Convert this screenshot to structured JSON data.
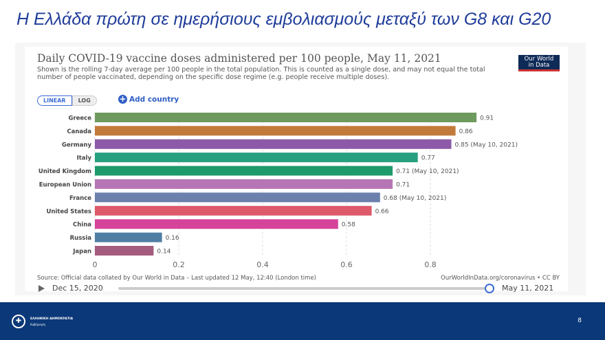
{
  "slide": {
    "title": "Η Ελλάδα πρώτη σε ημερήσιους εμβολιασμούς μεταξύ των G8 και G20",
    "page": "8"
  },
  "footer": {
    "org": "ΕΛΛΗΝΙΚΗ ΔΗΜΟΚΡΑΤΙΑ",
    "dept": "Κυβέρνηση"
  },
  "controls": {
    "linear": "LINEAR",
    "log": "LOG",
    "add_country": "Add country",
    "start_date": "Dec 15, 2020",
    "end_date": "May 11, 2021"
  },
  "logo": {
    "line1": "Our World",
    "line2": "in Data"
  },
  "chart_data": {
    "type": "bar",
    "orientation": "horizontal",
    "title": "Daily COVID-19 vaccine doses administered per 100 people, May 11, 2021",
    "subtitle": "Shown is the rolling 7-day average per 100 people in the total population. This is counted as a single dose, and may not equal the total number of people vaccinated, depending on the specific dose regime (e.g. people receive multiple doses).",
    "categories": [
      "Greece",
      "Canada",
      "Germany",
      "Italy",
      "United Kingdom",
      "European Union",
      "France",
      "United States",
      "China",
      "Russia",
      "Japan"
    ],
    "values": [
      0.91,
      0.86,
      0.85,
      0.77,
      0.71,
      0.71,
      0.68,
      0.66,
      0.58,
      0.16,
      0.14
    ],
    "labels": [
      "0.91",
      "0.86",
      "0.85 (May 10, 2021)",
      "0.77",
      "0.71 (May 10, 2021)",
      "0.71",
      "0.68 (May 10, 2021)",
      "0.66",
      "0.58",
      "0.16",
      "0.14"
    ],
    "colors": [
      "#6f9a5e",
      "#c27a3a",
      "#8c5aa8",
      "#26a07e",
      "#1e9a6b",
      "#b676b5",
      "#6b80ad",
      "#dc5a6a",
      "#d6449a",
      "#4e7ea4",
      "#a55b7d"
    ],
    "xticks": [
      0,
      0.2,
      0.4,
      0.6,
      0.8
    ],
    "xtick_labels": [
      "0",
      "0.2",
      "0.4",
      "0.6",
      "0.8"
    ],
    "xlim": [
      0,
      0.95
    ],
    "grid": true,
    "source": "Source: Official data collated by Our World in Data – Last updated 12 May, 12:40 (London time)",
    "credit": "OurWorldInData.org/coronavirus • CC BY"
  }
}
